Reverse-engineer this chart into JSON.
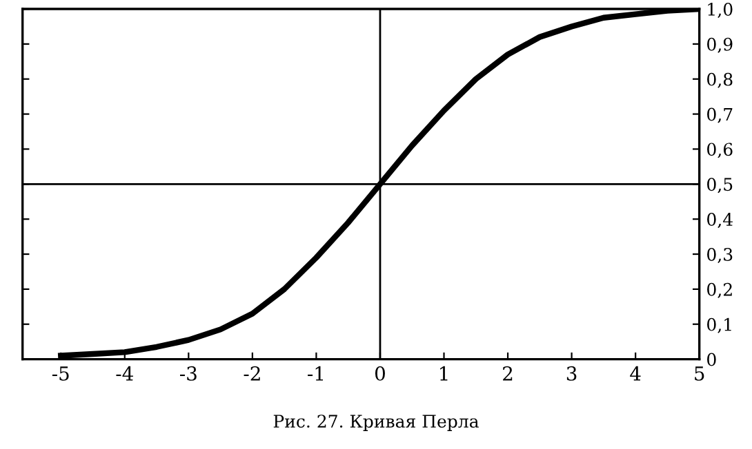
{
  "chart_data": {
    "type": "line",
    "x": [
      -5,
      -4.5,
      -4,
      -3.5,
      -3,
      -2.5,
      -2,
      -1.5,
      -1,
      -0.5,
      0,
      0.5,
      1,
      1.5,
      2,
      2.5,
      3,
      3.5,
      4,
      4.5,
      5
    ],
    "series": [
      {
        "color": "#000000",
        "values": [
          0.01,
          0.015,
          0.02,
          0.035,
          0.055,
          0.085,
          0.13,
          0.2,
          0.29,
          0.39,
          0.5,
          0.61,
          0.71,
          0.8,
          0.87,
          0.92,
          0.95,
          0.975,
          0.985,
          0.995,
          1.0
        ]
      }
    ],
    "xlim": [
      -5.6,
      5
    ],
    "ylim": [
      0,
      1.0
    ],
    "xticks": [
      {
        "value": -5,
        "label": "-5"
      },
      {
        "value": -4,
        "label": "-4"
      },
      {
        "value": -3,
        "label": "-3"
      },
      {
        "value": -2,
        "label": "-2"
      },
      {
        "value": -1,
        "label": "-1"
      },
      0,
      1,
      2,
      3,
      4,
      5
    ],
    "yticks": [
      0,
      {
        "value": 0.1,
        "label": "0,1"
      },
      {
        "value": 0.2,
        "label": "0,2"
      },
      {
        "value": 0.3,
        "label": "0,3"
      },
      {
        "value": 0.4,
        "label": "0,4"
      },
      {
        "value": 0.5,
        "label": "0,5"
      },
      {
        "value": 0.6,
        "label": "0,6"
      },
      {
        "value": 0.7,
        "label": "0,7"
      },
      {
        "value": 0.8,
        "label": "0,8"
      },
      {
        "value": 0.9,
        "label": "0,9"
      },
      {
        "value": 1.0,
        "label": "1,0"
      }
    ],
    "ref_lines": [
      {
        "axis": "y",
        "value": 0.5,
        "color": "#000000"
      },
      {
        "axis": "x",
        "value": 0,
        "color": "#000000"
      }
    ],
    "grid": false,
    "marker": "none",
    "line_style": "solid",
    "annotations": [
      "Рис. 27. Кривая Перла"
    ]
  }
}
